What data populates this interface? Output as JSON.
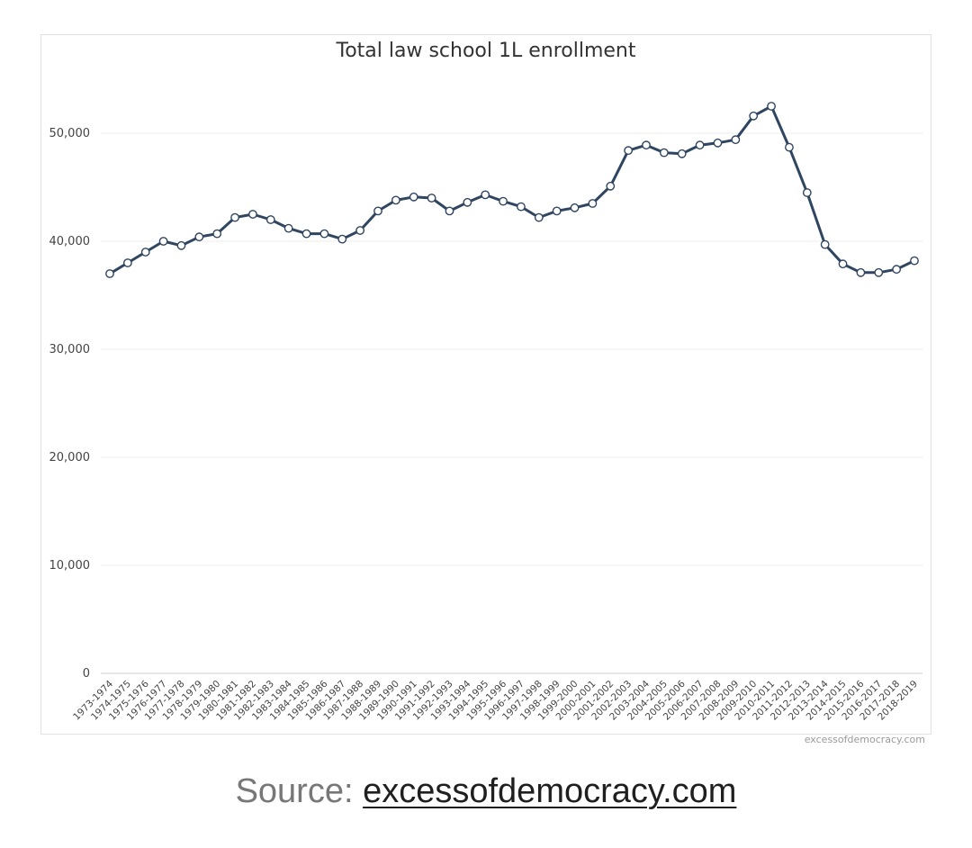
{
  "chart_data": {
    "type": "line",
    "title": "Total law school 1L enrollment",
    "xlabel": "",
    "ylabel": "",
    "ylim": [
      0,
      55000
    ],
    "yticks": [
      0,
      10000,
      20000,
      30000,
      40000,
      50000
    ],
    "ytick_labels": [
      "0",
      "10,000",
      "20,000",
      "30,000",
      "40,000",
      "50,000"
    ],
    "grid": true,
    "legend": "none",
    "line_color": "#2f4560",
    "categories": [
      "1973-1974",
      "1974-1975",
      "1975-1976",
      "1976-1977",
      "1977-1978",
      "1978-1979",
      "1979-1980",
      "1980-1981",
      "1981-1982",
      "1982-1983",
      "1983-1984",
      "1984-1985",
      "1985-1986",
      "1986-1987",
      "1987-1988",
      "1988-1989",
      "1989-1990",
      "1990-1991",
      "1991-1992",
      "1992-1993",
      "1993-1994",
      "1994-1995",
      "1995-1996",
      "1996-1997",
      "1997-1998",
      "1998-1999",
      "1999-2000",
      "2000-2001",
      "2001-2002",
      "2002-2003",
      "2003-2004",
      "2004-2005",
      "2005-2006",
      "2006-2007",
      "2007-2008",
      "2008-2009",
      "2009-2010",
      "2010-2011",
      "2011-2012",
      "2012-2013",
      "2013-2014",
      "2014-2015",
      "2015-2016",
      "2016-2017",
      "2017-2018",
      "2018-2019"
    ],
    "values": [
      37000,
      38000,
      39000,
      40000,
      39600,
      40400,
      40700,
      42200,
      42500,
      42000,
      41200,
      40700,
      40700,
      40200,
      41000,
      42800,
      43800,
      44100,
      44000,
      42800,
      43600,
      44300,
      43700,
      43200,
      42200,
      42800,
      43100,
      43500,
      45100,
      48400,
      48900,
      48200,
      48100,
      48900,
      49100,
      49400,
      51600,
      52500,
      48700,
      44500,
      39700,
      37900,
      37100,
      37100,
      37400,
      38200
    ]
  },
  "watermark": "excessofdemocracy.com",
  "source": {
    "prefix": "Source: ",
    "link_text": "excessofdemocracy.com"
  }
}
